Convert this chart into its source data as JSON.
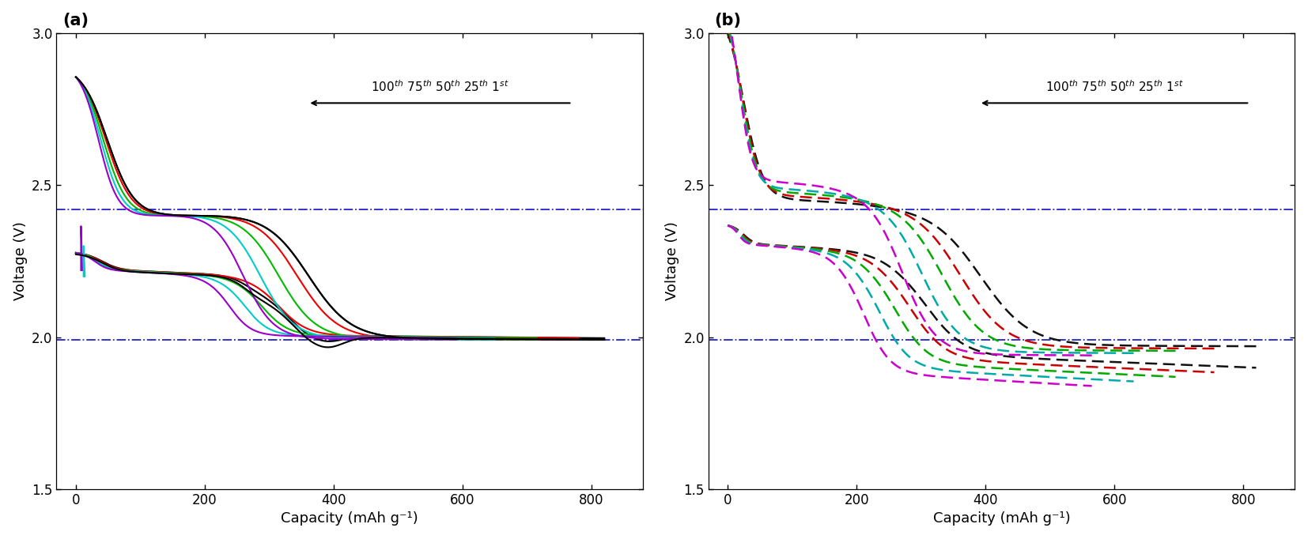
{
  "xlabel": "Capacity (mAh g⁻¹)",
  "ylabel": "Voltage (V)",
  "xlim": [
    -30,
    880
  ],
  "ylim": [
    1.5,
    3.0
  ],
  "hline1": 2.42,
  "hline2": 1.99,
  "hline_color": "#2222CC",
  "background": "#ffffff",
  "panel_a": {
    "cycles": [
      {
        "color": "#000000",
        "cap": 820
      },
      {
        "color": "#EE0000",
        "cap": 780
      },
      {
        "color": "#00BB00",
        "cap": 715
      },
      {
        "color": "#00CCCC",
        "cap": 650
      },
      {
        "color": "#9900CC",
        "cap": 590
      }
    ]
  },
  "panel_b": {
    "cycles": [
      {
        "color": "#111111",
        "cap": 820
      },
      {
        "color": "#CC0000",
        "cap": 755
      },
      {
        "color": "#00AA00",
        "cap": 695
      },
      {
        "color": "#00AAAA",
        "cap": 630
      },
      {
        "color": "#CC00CC",
        "cap": 565
      }
    ]
  },
  "lw_solid": 1.5,
  "lw_dashed": 1.8
}
